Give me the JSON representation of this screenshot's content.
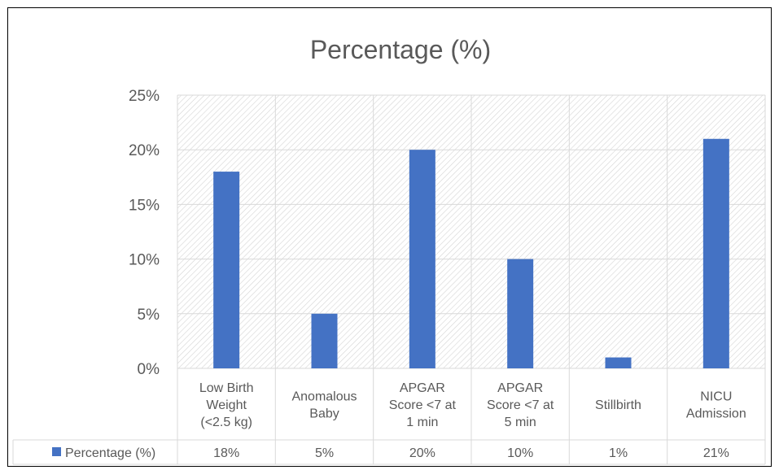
{
  "chart_data": {
    "type": "bar",
    "title": "Percentage (%)",
    "categories": [
      [
        "Low Birth",
        "Weight",
        "(<2.5 kg)"
      ],
      [
        "Anomalous",
        "Baby"
      ],
      [
        "APGAR",
        "Score <7 at",
        "1 min"
      ],
      [
        "APGAR",
        "Score <7 at",
        "5 min"
      ],
      [
        "Stillbirth"
      ],
      [
        "NICU",
        "Admission"
      ]
    ],
    "series": [
      {
        "name": "Percentage (%)",
        "values": [
          18,
          5,
          20,
          10,
          1,
          21
        ],
        "labels": [
          "18%",
          "5%",
          "20%",
          "10%",
          "1%",
          "21%"
        ]
      }
    ],
    "ylim": [
      0,
      25
    ],
    "yticks": [
      0,
      5,
      10,
      15,
      20,
      25
    ],
    "ytick_labels": [
      "0%",
      "5%",
      "10%",
      "15%",
      "20%",
      "25%"
    ],
    "grid": true,
    "legend": "data-table",
    "colors": {
      "bar": "#4472C4",
      "grid": "#D9D9D9",
      "hatch": "#D0D0D0",
      "text": "#595959",
      "border": "#000000"
    }
  }
}
